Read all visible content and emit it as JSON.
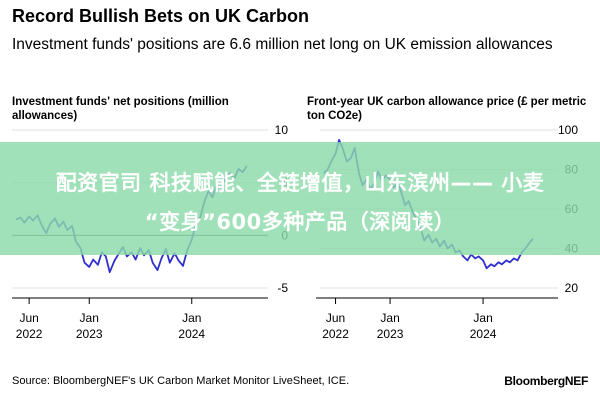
{
  "header": {
    "title": "Record Bullish Bets on UK Carbon",
    "subtitle": "Investment funds' positions are 6.6 million net long on UK emission allowances"
  },
  "overlay": {
    "line1": "配资官司 科技赋能、全链增值，山东滨州—— 小麦",
    "line2": "“变身”600多种产品（深阅读）"
  },
  "footer": {
    "source": "Source: BloombergNEF's UK Carbon Market Monitor LiveSheet, ICE.",
    "brand": "BloombergNEF"
  },
  "colors": {
    "line": "#2f2fcc",
    "grid": "#d9d9d9",
    "zero_line": "#555555",
    "banner": "#8cdaaa"
  },
  "chart_data": [
    {
      "type": "line",
      "title": "Investment funds' net positions (million allowances)",
      "ylim": [
        -5,
        10
      ],
      "yticks": [
        10,
        5,
        0,
        -5
      ],
      "xlim": [
        "2022-04-01",
        "2024-08-31"
      ],
      "xticks": [
        {
          "date": "2022-06-01",
          "month": "Jun",
          "year": "2022"
        },
        {
          "date": "2023-01-01",
          "month": "Jan",
          "year": "2023"
        },
        {
          "date": "2024-01-01",
          "month": "Jan",
          "year": "2024"
        }
      ],
      "grid": true,
      "series": [
        {
          "values": [
            [
              "2022-04-15",
              1.5
            ],
            [
              "2022-05-01",
              1.7
            ],
            [
              "2022-05-15",
              1.2
            ],
            [
              "2022-06-01",
              1.8
            ],
            [
              "2022-06-15",
              1.4
            ],
            [
              "2022-07-01",
              1.9
            ],
            [
              "2022-07-15",
              1.0
            ],
            [
              "2022-08-01",
              0.2
            ],
            [
              "2022-08-15",
              1.1
            ],
            [
              "2022-09-01",
              1.6
            ],
            [
              "2022-09-15",
              0.8
            ],
            [
              "2022-10-01",
              1.3
            ],
            [
              "2022-10-15",
              0.5
            ],
            [
              "2022-11-01",
              0.9
            ],
            [
              "2022-11-15",
              -0.6
            ],
            [
              "2022-12-01",
              -1.2
            ],
            [
              "2022-12-15",
              -2.6
            ],
            [
              "2023-01-01",
              -3.0
            ],
            [
              "2023-01-15",
              -2.3
            ],
            [
              "2023-02-01",
              -2.8
            ],
            [
              "2023-02-15",
              -1.6
            ],
            [
              "2023-03-01",
              -2.0
            ],
            [
              "2023-03-15",
              -3.5
            ],
            [
              "2023-04-01",
              -2.4
            ],
            [
              "2023-04-15",
              -1.8
            ],
            [
              "2023-05-01",
              -1.1
            ],
            [
              "2023-05-15",
              -2.0
            ],
            [
              "2023-06-01",
              -1.6
            ],
            [
              "2023-06-15",
              -2.3
            ],
            [
              "2023-07-01",
              -1.2
            ],
            [
              "2023-07-15",
              -1.9
            ],
            [
              "2023-08-01",
              -1.4
            ],
            [
              "2023-08-15",
              -2.6
            ],
            [
              "2023-09-01",
              -3.3
            ],
            [
              "2023-09-15",
              -2.2
            ],
            [
              "2023-10-01",
              -1.3
            ],
            [
              "2023-10-15",
              -2.6
            ],
            [
              "2023-11-01",
              -1.7
            ],
            [
              "2023-11-15",
              -2.4
            ],
            [
              "2023-12-01",
              -2.9
            ],
            [
              "2023-12-15",
              -1.5
            ],
            [
              "2024-01-01",
              -0.4
            ],
            [
              "2024-01-15",
              1.0
            ],
            [
              "2024-02-01",
              1.8
            ],
            [
              "2024-02-15",
              3.2
            ],
            [
              "2024-03-01",
              4.2
            ],
            [
              "2024-03-15",
              3.6
            ],
            [
              "2024-04-01",
              5.0
            ],
            [
              "2024-04-15",
              4.6
            ],
            [
              "2024-05-01",
              5.6
            ],
            [
              "2024-05-15",
              5.9
            ],
            [
              "2024-06-01",
              5.4
            ],
            [
              "2024-06-15",
              6.3
            ],
            [
              "2024-07-01",
              6.0
            ],
            [
              "2024-07-15",
              6.6
            ]
          ]
        }
      ]
    },
    {
      "type": "line",
      "title": "Front-year UK carbon allowance price (£ per metric ton CO2e)",
      "ylim": [
        20,
        100
      ],
      "yticks": [
        100,
        80,
        60,
        40,
        20
      ],
      "xlim": [
        "2022-04-01",
        "2024-08-31"
      ],
      "xticks": [
        {
          "date": "2022-06-01",
          "month": "Jun",
          "year": "2022"
        },
        {
          "date": "2023-01-01",
          "month": "Jan",
          "year": "2023"
        },
        {
          "date": "2024-01-01",
          "month": "Jan",
          "year": "2024"
        }
      ],
      "grid": true,
      "series": [
        {
          "values": [
            [
              "2022-04-15",
              78
            ],
            [
              "2022-05-01",
              80
            ],
            [
              "2022-05-15",
              84
            ],
            [
              "2022-06-01",
              88
            ],
            [
              "2022-06-15",
              95
            ],
            [
              "2022-07-01",
              90
            ],
            [
              "2022-07-15",
              84
            ],
            [
              "2022-08-01",
              86
            ],
            [
              "2022-08-15",
              91
            ],
            [
              "2022-09-01",
              78
            ],
            [
              "2022-09-15",
              72
            ],
            [
              "2022-10-01",
              75
            ],
            [
              "2022-10-15",
              70
            ],
            [
              "2022-11-01",
              73
            ],
            [
              "2022-11-15",
              79
            ],
            [
              "2022-12-01",
              74
            ],
            [
              "2022-12-15",
              77
            ],
            [
              "2023-01-01",
              75
            ],
            [
              "2023-01-15",
              71
            ],
            [
              "2023-02-01",
              73
            ],
            [
              "2023-02-15",
              68
            ],
            [
              "2023-03-01",
              62
            ],
            [
              "2023-03-15",
              64
            ],
            [
              "2023-04-01",
              58
            ],
            [
              "2023-04-15",
              55
            ],
            [
              "2023-05-01",
              50
            ],
            [
              "2023-05-15",
              44
            ],
            [
              "2023-06-01",
              47
            ],
            [
              "2023-06-15",
              43
            ],
            [
              "2023-07-01",
              45
            ],
            [
              "2023-07-15",
              41
            ],
            [
              "2023-08-01",
              44
            ],
            [
              "2023-08-15",
              40
            ],
            [
              "2023-09-01",
              42
            ],
            [
              "2023-09-15",
              38
            ],
            [
              "2023-10-01",
              39
            ],
            [
              "2023-10-15",
              36
            ],
            [
              "2023-11-01",
              34
            ],
            [
              "2023-11-15",
              37
            ],
            [
              "2023-12-01",
              35
            ],
            [
              "2023-12-15",
              36
            ],
            [
              "2024-01-01",
              34
            ],
            [
              "2024-01-15",
              30
            ],
            [
              "2024-02-01",
              32
            ],
            [
              "2024-02-15",
              31
            ],
            [
              "2024-03-01",
              33
            ],
            [
              "2024-03-15",
              32
            ],
            [
              "2024-04-01",
              34
            ],
            [
              "2024-04-15",
              33
            ],
            [
              "2024-05-01",
              35
            ],
            [
              "2024-05-15",
              34
            ],
            [
              "2024-06-01",
              38
            ],
            [
              "2024-06-15",
              40
            ],
            [
              "2024-07-01",
              43
            ],
            [
              "2024-07-15",
              45
            ]
          ]
        }
      ]
    }
  ]
}
